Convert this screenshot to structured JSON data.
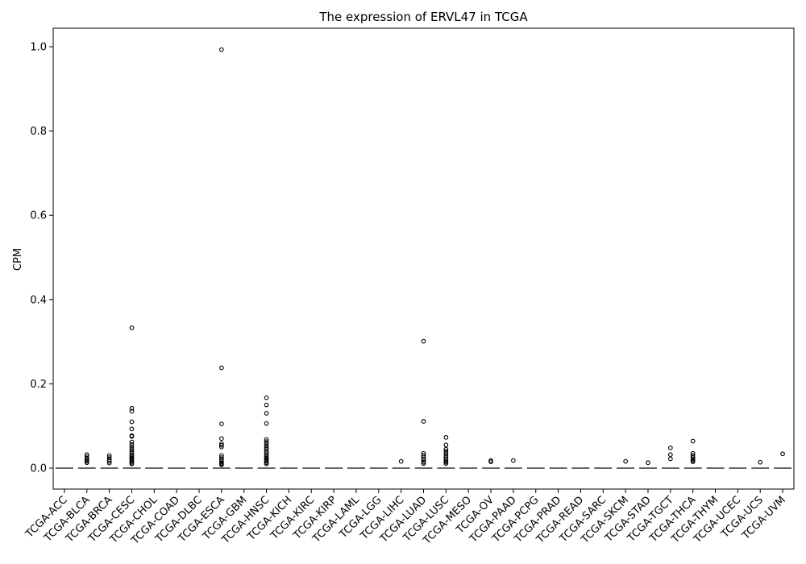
{
  "chart_data": {
    "type": "box",
    "title": "The expression of ERVL47 in TCGA",
    "xlabel": "",
    "ylabel": "CPM",
    "ylim": [
      -0.05,
      1.04
    ],
    "yticks": [
      0.0,
      0.2,
      0.4,
      0.6,
      0.8,
      1.0
    ],
    "ytick_labels": [
      "0.0",
      "0.2",
      "0.4",
      "0.6",
      "0.8",
      "1.0"
    ],
    "grid": false,
    "categories": [
      "TCGA-ACC",
      "TCGA-BLCA",
      "TCGA-BRCA",
      "TCGA-CESC",
      "TCGA-CHOL",
      "TCGA-COAD",
      "TCGA-DLBC",
      "TCGA-ESCA",
      "TCGA-GBM",
      "TCGA-HNSC",
      "TCGA-KICH",
      "TCGA-KIRC",
      "TCGA-KIRP",
      "TCGA-LAML",
      "TCGA-LGG",
      "TCGA-LIHC",
      "TCGA-LUAD",
      "TCGA-LUSC",
      "TCGA-MESO",
      "TCGA-OV",
      "TCGA-PAAD",
      "TCGA-PCPG",
      "TCGA-PRAD",
      "TCGA-READ",
      "TCGA-SARC",
      "TCGA-SKCM",
      "TCGA-STAD",
      "TCGA-TGCT",
      "TCGA-THCA",
      "TCGA-THYM",
      "TCGA-UCEC",
      "TCGA-UCS",
      "TCGA-UVM"
    ],
    "medians": [
      0,
      0,
      0,
      0,
      0,
      0,
      0,
      0,
      0,
      0,
      0,
      0,
      0,
      0,
      0,
      0,
      0,
      0,
      0,
      0,
      0,
      0,
      0,
      0,
      0,
      0,
      0,
      0,
      0,
      0,
      0,
      0,
      0
    ],
    "outliers": [
      [],
      [
        0.032,
        0.027,
        0.022,
        0.019,
        0.016,
        0.013
      ],
      [
        0.03,
        0.025,
        0.02,
        0.016,
        0.012
      ],
      [
        0.333,
        0.142,
        0.135,
        0.11,
        0.093,
        0.077,
        0.075,
        0.062,
        0.056,
        0.05,
        0.045,
        0.04,
        0.035,
        0.03,
        0.027,
        0.024,
        0.021,
        0.018,
        0.015,
        0.012,
        0.01
      ],
      [],
      [],
      [],
      [
        0.993,
        0.238,
        0.105,
        0.07,
        0.058,
        0.054,
        0.05,
        0.03,
        0.025,
        0.02,
        0.015,
        0.012,
        0.01,
        0.008
      ],
      [],
      [
        0.167,
        0.15,
        0.13,
        0.106,
        0.068,
        0.063,
        0.058,
        0.052,
        0.048,
        0.045,
        0.04,
        0.036,
        0.032,
        0.028,
        0.025,
        0.022,
        0.019,
        0.016,
        0.013,
        0.01
      ],
      [],
      [],
      [],
      [],
      [],
      [
        0.016
      ],
      [
        0.301,
        0.111,
        0.035,
        0.03,
        0.026,
        0.022,
        0.018,
        0.014,
        0.011
      ],
      [
        0.073,
        0.055,
        0.045,
        0.04,
        0.035,
        0.03,
        0.025,
        0.021,
        0.017,
        0.014,
        0.011
      ],
      [],
      [
        0.018,
        0.015
      ],
      [
        0.018
      ],
      [],
      [],
      [],
      [],
      [
        0.016
      ],
      [
        0.013
      ],
      [
        0.048,
        0.032,
        0.022
      ],
      [
        0.064,
        0.035,
        0.03,
        0.025,
        0.021,
        0.018,
        0.015
      ],
      [],
      [],
      [
        0.014
      ],
      [
        0.034
      ],
      []
    ]
  }
}
